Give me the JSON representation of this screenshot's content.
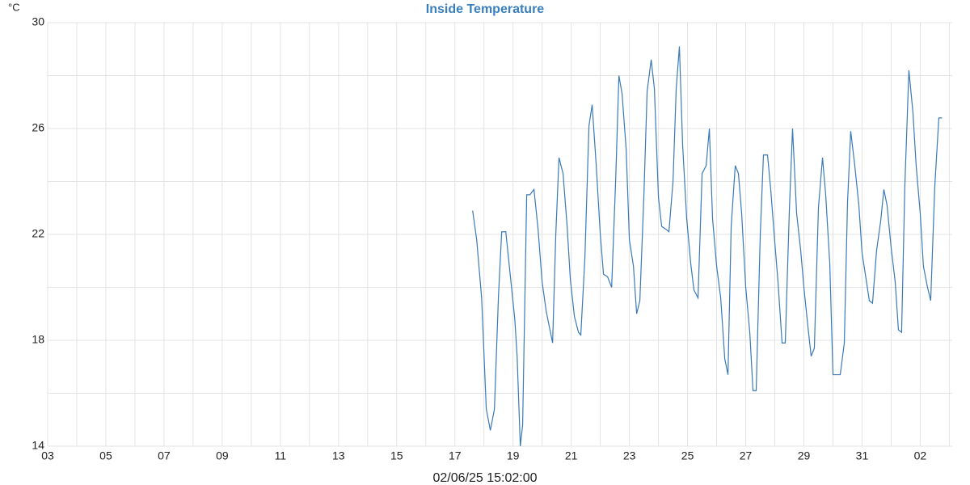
{
  "chart_data": {
    "type": "line",
    "title": "Inside Temperature",
    "ylabel": "°C",
    "timestamp": "02/06/25 15:02:00",
    "xlim": [
      0,
      31.1
    ],
    "ylim": [
      14,
      30
    ],
    "xticks": [
      {
        "value": 0,
        "label": "03"
      },
      {
        "value": 2,
        "label": "05"
      },
      {
        "value": 4,
        "label": "07"
      },
      {
        "value": 6,
        "label": "09"
      },
      {
        "value": 8,
        "label": "11"
      },
      {
        "value": 10,
        "label": "13"
      },
      {
        "value": 12,
        "label": "15"
      },
      {
        "value": 14,
        "label": "17"
      },
      {
        "value": 16,
        "label": "19"
      },
      {
        "value": 18,
        "label": "21"
      },
      {
        "value": 20,
        "label": "23"
      },
      {
        "value": 22,
        "label": "25"
      },
      {
        "value": 24,
        "label": "27"
      },
      {
        "value": 26,
        "label": "29"
      },
      {
        "value": 28,
        "label": "31"
      },
      {
        "value": 30,
        "label": "02"
      }
    ],
    "x_minor_grid": [
      1,
      3,
      5,
      7,
      9,
      11,
      13,
      15,
      17,
      19,
      21,
      23,
      25,
      27,
      29,
      31
    ],
    "yticks": [
      14,
      18,
      22,
      26,
      30
    ],
    "y_minor_grid": [
      16,
      20,
      24,
      28
    ],
    "grid": true,
    "x": [
      14.61,
      14.75,
      14.92,
      15.08,
      15.22,
      15.36,
      15.5,
      15.61,
      15.75,
      15.92,
      16.06,
      16.14,
      16.25,
      16.33,
      16.47,
      16.58,
      16.72,
      16.86,
      17.0,
      17.14,
      17.36,
      17.47,
      17.58,
      17.72,
      17.86,
      17.97,
      18.11,
      18.25,
      18.33,
      18.47,
      18.61,
      18.72,
      18.86,
      19.0,
      19.11,
      19.25,
      19.39,
      19.53,
      19.64,
      19.75,
      19.89,
      20.0,
      20.14,
      20.25,
      20.36,
      20.5,
      20.61,
      20.75,
      20.86,
      21.0,
      21.11,
      21.25,
      21.36,
      21.5,
      21.61,
      21.72,
      21.83,
      21.97,
      22.11,
      22.22,
      22.36,
      22.5,
      22.64,
      22.75,
      22.86,
      23.0,
      23.14,
      23.28,
      23.39,
      23.5,
      23.64,
      23.75,
      23.86,
      24.0,
      24.14,
      24.25,
      24.36,
      24.5,
      24.61,
      24.75,
      24.86,
      25.0,
      25.11,
      25.25,
      25.36,
      25.5,
      25.61,
      25.75,
      25.89,
      26.0,
      26.14,
      26.25,
      26.36,
      26.5,
      26.64,
      26.75,
      26.89,
      27.0,
      27.11,
      27.25,
      27.39,
      27.5,
      27.61,
      27.75,
      27.89,
      28.0,
      28.14,
      28.25,
      28.36,
      28.5,
      28.64,
      28.75,
      28.86,
      29.0,
      29.14,
      29.25,
      29.36,
      29.47,
      29.61,
      29.75,
      29.86,
      30.0,
      30.11,
      30.25,
      30.36,
      30.5,
      30.64,
      30.75
    ],
    "series": [
      {
        "color": "#3a7ab8",
        "values": [
          22.9,
          21.8,
          19.6,
          15.4,
          14.6,
          15.4,
          19.7,
          22.1,
          22.1,
          20.3,
          18.8,
          17.4,
          14.0,
          14.8,
          23.5,
          23.5,
          23.7,
          22.2,
          20.2,
          19.1,
          17.9,
          22.0,
          24.9,
          24.3,
          22.3,
          20.3,
          18.9,
          18.3,
          18.2,
          21.1,
          26.1,
          26.9,
          24.6,
          22.0,
          20.5,
          20.4,
          20.0,
          24.1,
          28.0,
          27.3,
          25.2,
          21.8,
          20.8,
          19.0,
          19.5,
          23.5,
          27.4,
          28.6,
          27.5,
          23.4,
          22.3,
          22.2,
          22.1,
          24.0,
          27.5,
          29.1,
          25.4,
          22.6,
          20.9,
          19.9,
          19.6,
          24.3,
          24.6,
          26.0,
          22.6,
          20.8,
          19.6,
          17.3,
          16.7,
          22.3,
          24.6,
          24.3,
          22.8,
          20.0,
          18.3,
          16.1,
          16.1,
          22.0,
          25.0,
          25.0,
          23.7,
          21.7,
          20.2,
          17.9,
          17.9,
          22.9,
          26.0,
          22.8,
          21.4,
          20.0,
          18.5,
          17.4,
          17.7,
          23.0,
          24.9,
          23.5,
          20.9,
          16.7,
          16.7,
          16.7,
          17.9,
          23.2,
          25.9,
          24.6,
          23.1,
          21.3,
          20.3,
          19.5,
          19.4,
          21.4,
          22.5,
          23.7,
          23.1,
          21.5,
          20.2,
          18.4,
          18.3,
          23.8,
          28.2,
          26.6,
          24.6,
          22.8,
          20.8,
          20.0,
          19.5,
          23.8,
          26.4,
          26.4
        ]
      }
    ]
  }
}
